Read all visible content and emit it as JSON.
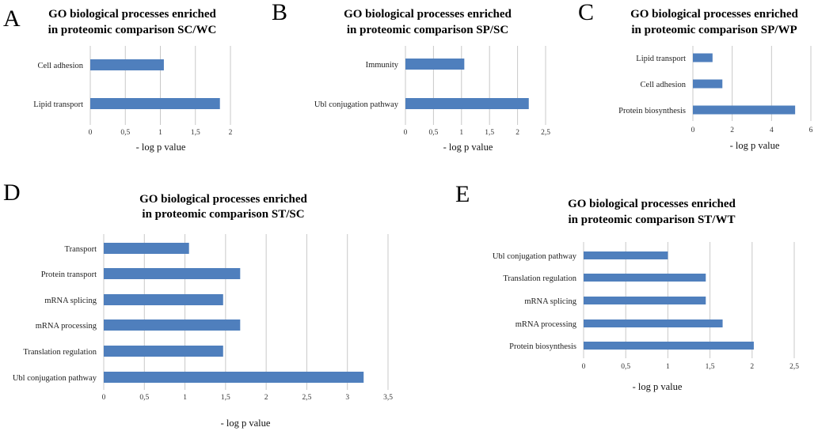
{
  "chart_data": [
    {
      "id": "A",
      "type": "bar",
      "orientation": "horizontal",
      "title_lines": [
        "GO biological processes enriched",
        "in proteomic comparison SC/WC"
      ],
      "categories": [
        "Cell adhesion",
        "Lipid transport"
      ],
      "values": [
        1.05,
        1.85
      ],
      "xlabel": "- log p value",
      "xlim": [
        0,
        2
      ],
      "ticks": [
        0,
        0.5,
        1,
        1.5,
        2
      ],
      "tick_labels": [
        "0",
        "0,5",
        "1",
        "1,5",
        "2"
      ],
      "grid": true
    },
    {
      "id": "B",
      "type": "bar",
      "orientation": "horizontal",
      "title_lines": [
        "GO biological processes enriched",
        "in proteomic comparison SP/SC"
      ],
      "categories": [
        "Immunity",
        "Ubl conjugation pathway"
      ],
      "values": [
        1.05,
        2.2
      ],
      "xlabel": "- log p value",
      "xlim": [
        0,
        2.5
      ],
      "ticks": [
        0,
        0.5,
        1,
        1.5,
        2,
        2.5
      ],
      "tick_labels": [
        "0",
        "0,5",
        "1",
        "1,5",
        "2",
        "2,5"
      ],
      "grid": true
    },
    {
      "id": "C",
      "type": "bar",
      "orientation": "horizontal",
      "title_lines": [
        "GO biological processes enriched",
        "in proteomic comparison SP/WP"
      ],
      "categories": [
        "Lipid transport",
        "Cell adhesion",
        "Protein biosynthesis"
      ],
      "values": [
        1.0,
        1.5,
        5.2
      ],
      "xlabel": "- log p value",
      "xlim": [
        0,
        6
      ],
      "ticks": [
        0,
        2,
        4,
        6
      ],
      "tick_labels": [
        "0",
        "2",
        "4",
        "6"
      ],
      "grid": true
    },
    {
      "id": "D",
      "type": "bar",
      "orientation": "horizontal",
      "title_lines": [
        "GO biological processes enriched",
        "in proteomic comparison ST/SC"
      ],
      "categories": [
        "Transport",
        "Protein transport",
        "mRNA splicing",
        "mRNA processing",
        "Translation regulation",
        "Ubl conjugation pathway"
      ],
      "values": [
        1.05,
        1.68,
        1.47,
        1.68,
        1.47,
        3.2
      ],
      "xlabel": "- log p value",
      "xlim": [
        0,
        3.5
      ],
      "ticks": [
        0,
        0.5,
        1,
        1.5,
        2,
        2.5,
        3,
        3.5
      ],
      "tick_labels": [
        "0",
        "0,5",
        "1",
        "1,5",
        "2",
        "2,5",
        "3",
        "3,5"
      ],
      "grid": true
    },
    {
      "id": "E",
      "type": "bar",
      "orientation": "horizontal",
      "title_lines": [
        "GO biological processes enriched",
        "in proteomic comparison ST/WT"
      ],
      "categories": [
        "Ubl conjugation pathway",
        "Translation regulation",
        "mRNA splicing",
        "mRNA processing",
        "Protein biosynthesis"
      ],
      "values": [
        1.0,
        1.45,
        1.45,
        1.65,
        2.02
      ],
      "xlabel": "- log p value",
      "xlim": [
        0,
        2.5
      ],
      "ticks": [
        0,
        0.5,
        1,
        1.5,
        2,
        2.5
      ],
      "tick_labels": [
        "0",
        "0,5",
        "1",
        "1,5",
        "2",
        "2,5"
      ],
      "grid": true
    }
  ],
  "colors": {
    "bar": "#4f7fbd",
    "grid": "#c8c8c8"
  }
}
